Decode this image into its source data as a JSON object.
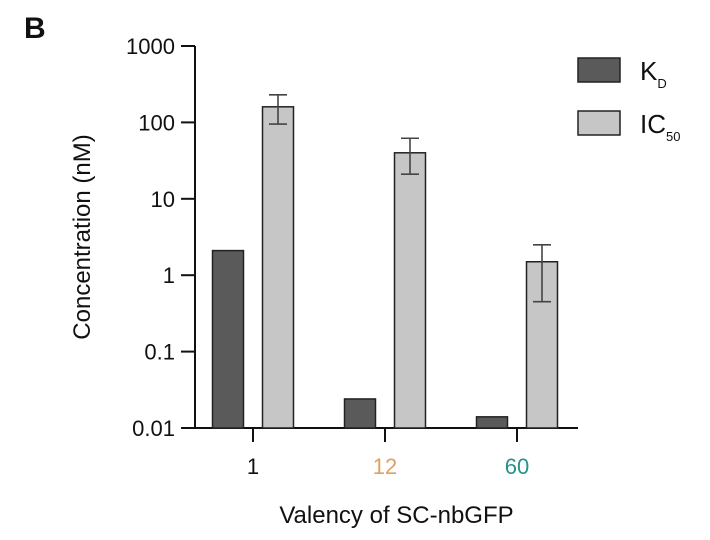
{
  "panel_label": "B",
  "chart_data": {
    "type": "bar",
    "categories": [
      "1",
      "12",
      "60"
    ],
    "category_colors": [
      "#111111",
      "#e0a060",
      "#2a8f8f"
    ],
    "series": [
      {
        "name": "K",
        "subscript": "D",
        "color": "#5a5a5a",
        "values": [
          2.1,
          0.024,
          0.014
        ],
        "errors": [
          null,
          null,
          null
        ]
      },
      {
        "name": "IC",
        "subscript": "50",
        "color": "#c6c6c6",
        "values": [
          160,
          40,
          1.5
        ],
        "errors": [
          [
            95,
            230
          ],
          [
            21,
            62
          ],
          [
            0.45,
            2.5
          ]
        ]
      }
    ],
    "xlabel": "Valency of SC-nbGFP",
    "ylabel": "Concentration (nM)",
    "yscale": "log",
    "ylim": [
      0.01,
      1000
    ],
    "yticks": [
      0.01,
      0.1,
      1,
      10,
      100,
      1000
    ],
    "ytick_labels": [
      "0.01",
      "0.1",
      "1",
      "10",
      "100",
      "1000"
    ],
    "grid": false,
    "legend": "top-right"
  }
}
